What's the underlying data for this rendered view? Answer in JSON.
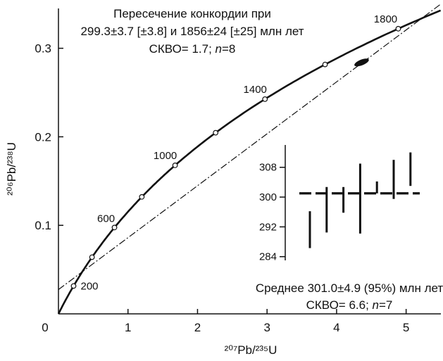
{
  "chart_data": [
    {
      "type": "line",
      "subtype": "concordia-diagram",
      "xlabel": "²⁰⁷Pb/²³⁵U",
      "ylabel": "²⁰⁶Pb/²³⁸U",
      "xlim": [
        0,
        5.5
      ],
      "ylim": [
        0,
        0.345
      ],
      "x_ticks": [
        0,
        1,
        2,
        3,
        4,
        5
      ],
      "x_tick_labels": [
        "0",
        "1",
        "2",
        "3",
        "4",
        "5"
      ],
      "y_ticks": [
        0.1,
        0.2,
        0.3
      ],
      "y_tick_labels": [
        "0.1",
        "0.2",
        "0.3"
      ],
      "grid": false,
      "concordia": {
        "age_markers_ma": [
          200,
          400,
          600,
          800,
          1000,
          1200,
          1400,
          1600,
          1800
        ],
        "labeled_ages": [
          "200",
          "600",
          "1000",
          "1400",
          "1800"
        ]
      },
      "discordia": {
        "lower_intercept_ma": 299.3,
        "upper_intercept_ma": 1856
      },
      "data_ellipse": {
        "x": 4.36,
        "y": 0.284
      },
      "annotation": {
        "line1": "Пересечение конкордии при",
        "line2": "299.3±3.7 [±3.8] и 1856±24 [±25] млн лет",
        "line3_prefix": "СКВО= 1.7; ",
        "line3_n": "n",
        "line3_suffix": "=8"
      }
    },
    {
      "type": "bar",
      "subtype": "weighted-mean-inset",
      "y_ticks": [
        284,
        292,
        300,
        308
      ],
      "y_tick_labels": [
        "284",
        "292",
        "300",
        "308"
      ],
      "ylim": [
        283,
        314
      ],
      "mean": 301.0,
      "bars": [
        {
          "low": 286.3,
          "high": 296.2
        },
        {
          "low": 290.5,
          "high": 302.7
        },
        {
          "low": 295.8,
          "high": 302.7
        },
        {
          "low": 290.2,
          "high": 309.0
        },
        {
          "low": 301.0,
          "high": 304.2
        },
        {
          "low": 299.5,
          "high": 310.0
        },
        {
          "low": 303.0,
          "high": 312.0
        }
      ],
      "annotation": {
        "line1": "Среднее 301.0±4.9 (95%) млн лет",
        "line2_prefix": "СКВО= 6.6; ",
        "line2_n": "n",
        "line2_suffix": "=7"
      }
    }
  ]
}
